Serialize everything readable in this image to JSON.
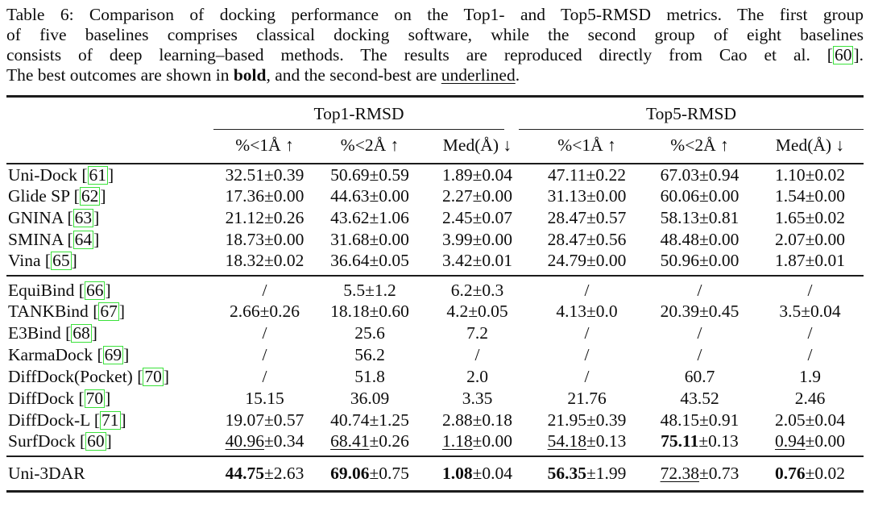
{
  "colors": {
    "cite_box": "#3be23b",
    "rule": "#1c1c1c",
    "text": "#0d0d0d"
  },
  "caption": {
    "line1": "Table 6: Comparison of docking performance on the Top1- and Top5-RMSD metrics. The first group",
    "line2": "of five baselines comprises classical docking software, while the second group of eight baselines",
    "line3_pre": "consists of deep learning–based methods. The results are reproduced directly from Cao et al.",
    "bracket_open": "[",
    "line3_cite": "60",
    "bracket_close": "]",
    "period": ".",
    "line4_pre": "The best outcomes are shown in ",
    "line4_bold": "bold",
    "line4_mid": ", and the second-best are ",
    "line4_underline": "underlined"
  },
  "table": {
    "group_headers": [
      "Top1-RMSD",
      "Top5-RMSD"
    ],
    "sub_headers": [
      "%<1Å ↑",
      "%<2Å ↑",
      "Med(Å) ↓",
      "%<1Å ↑",
      "%<2Å ↑",
      "Med(Å) ↓"
    ],
    "groups": [
      {
        "name": "classical-docking-software",
        "rows": [
          {
            "method": "Uni-Dock",
            "cite": "61",
            "cells": [
              {
                "v": "32.51",
                "e": "±0.39",
                "s": ""
              },
              {
                "v": "50.69",
                "e": "±0.59",
                "s": ""
              },
              {
                "v": "1.89",
                "e": "±0.04",
                "s": ""
              },
              {
                "v": "47.11",
                "e": "±0.22",
                "s": ""
              },
              {
                "v": "67.03",
                "e": "±0.94",
                "s": ""
              },
              {
                "v": "1.10",
                "e": "±0.02",
                "s": ""
              }
            ]
          },
          {
            "method": "Glide SP",
            "cite": "62",
            "cells": [
              {
                "v": "17.36",
                "e": "±0.00",
                "s": ""
              },
              {
                "v": "44.63",
                "e": "±0.00",
                "s": ""
              },
              {
                "v": "2.27",
                "e": "±0.00",
                "s": ""
              },
              {
                "v": "31.13",
                "e": "±0.00",
                "s": ""
              },
              {
                "v": "60.06",
                "e": "±0.00",
                "s": ""
              },
              {
                "v": "1.54",
                "e": "±0.00",
                "s": ""
              }
            ]
          },
          {
            "method": "GNINA",
            "cite": "63",
            "cells": [
              {
                "v": "21.12",
                "e": "±0.26",
                "s": ""
              },
              {
                "v": "43.62",
                "e": "±1.06",
                "s": ""
              },
              {
                "v": "2.45",
                "e": "±0.07",
                "s": ""
              },
              {
                "v": "28.47",
                "e": "±0.57",
                "s": ""
              },
              {
                "v": "58.13",
                "e": "±0.81",
                "s": ""
              },
              {
                "v": "1.65",
                "e": "±0.02",
                "s": ""
              }
            ]
          },
          {
            "method": "SMINA",
            "cite": "64",
            "cells": [
              {
                "v": "18.73",
                "e": "±0.00",
                "s": ""
              },
              {
                "v": "31.68",
                "e": "±0.00",
                "s": ""
              },
              {
                "v": "3.99",
                "e": "±0.00",
                "s": ""
              },
              {
                "v": "28.47",
                "e": "±0.56",
                "s": ""
              },
              {
                "v": "48.48",
                "e": "±0.00",
                "s": ""
              },
              {
                "v": "2.07",
                "e": "±0.00",
                "s": ""
              }
            ]
          },
          {
            "method": "Vina",
            "cite": "65",
            "cells": [
              {
                "v": "18.32",
                "e": "±0.02",
                "s": ""
              },
              {
                "v": "36.64",
                "e": "±0.05",
                "s": ""
              },
              {
                "v": "3.42",
                "e": "±0.01",
                "s": ""
              },
              {
                "v": "24.79",
                "e": "±0.00",
                "s": ""
              },
              {
                "v": "50.96",
                "e": "±0.00",
                "s": ""
              },
              {
                "v": "1.87",
                "e": "±0.01",
                "s": ""
              }
            ]
          }
        ]
      },
      {
        "name": "deep-learning-methods",
        "rows": [
          {
            "method": "EquiBind",
            "cite": "66",
            "cells": [
              {
                "v": "/",
                "e": "",
                "s": ""
              },
              {
                "v": "5.5",
                "e": "±1.2",
                "s": ""
              },
              {
                "v": "6.2",
                "e": "±0.3",
                "s": ""
              },
              {
                "v": "/",
                "e": "",
                "s": ""
              },
              {
                "v": "/",
                "e": "",
                "s": ""
              },
              {
                "v": "/",
                "e": "",
                "s": ""
              }
            ]
          },
          {
            "method": "TANKBind",
            "cite": "67",
            "cells": [
              {
                "v": "2.66",
                "e": "±0.26",
                "s": ""
              },
              {
                "v": "18.18",
                "e": "±0.60",
                "s": ""
              },
              {
                "v": "4.2",
                "e": "±0.05",
                "s": ""
              },
              {
                "v": "4.13",
                "e": "±0.0",
                "s": ""
              },
              {
                "v": "20.39",
                "e": "±0.45",
                "s": ""
              },
              {
                "v": "3.5",
                "e": "±0.04",
                "s": ""
              }
            ]
          },
          {
            "method": "E3Bind",
            "cite": "68",
            "cells": [
              {
                "v": "/",
                "e": "",
                "s": ""
              },
              {
                "v": "25.6",
                "e": "",
                "s": ""
              },
              {
                "v": "7.2",
                "e": "",
                "s": ""
              },
              {
                "v": "/",
                "e": "",
                "s": ""
              },
              {
                "v": "/",
                "e": "",
                "s": ""
              },
              {
                "v": "/",
                "e": "",
                "s": ""
              }
            ]
          },
          {
            "method": "KarmaDock",
            "cite": "69",
            "cells": [
              {
                "v": "/",
                "e": "",
                "s": ""
              },
              {
                "v": "56.2",
                "e": "",
                "s": ""
              },
              {
                "v": "/",
                "e": "",
                "s": ""
              },
              {
                "v": "/",
                "e": "",
                "s": ""
              },
              {
                "v": "/",
                "e": "",
                "s": ""
              },
              {
                "v": "/",
                "e": "",
                "s": ""
              }
            ]
          },
          {
            "method": "DiffDock(Pocket)",
            "cite": "70",
            "cells": [
              {
                "v": "/",
                "e": "",
                "s": ""
              },
              {
                "v": "51.8",
                "e": "",
                "s": ""
              },
              {
                "v": "2.0",
                "e": "",
                "s": ""
              },
              {
                "v": "/",
                "e": "",
                "s": ""
              },
              {
                "v": "60.7",
                "e": "",
                "s": ""
              },
              {
                "v": "1.9",
                "e": "",
                "s": ""
              }
            ]
          },
          {
            "method": "DiffDock",
            "cite": "70",
            "cells": [
              {
                "v": "15.15",
                "e": "",
                "s": ""
              },
              {
                "v": "36.09",
                "e": "",
                "s": ""
              },
              {
                "v": "3.35",
                "e": "",
                "s": ""
              },
              {
                "v": "21.76",
                "e": "",
                "s": ""
              },
              {
                "v": "43.52",
                "e": "",
                "s": ""
              },
              {
                "v": "2.46",
                "e": "",
                "s": ""
              }
            ]
          },
          {
            "method": "DiffDock-L",
            "cite": "71",
            "cells": [
              {
                "v": "19.07",
                "e": "±0.57",
                "s": ""
              },
              {
                "v": "40.74",
                "e": "±1.25",
                "s": ""
              },
              {
                "v": "2.88",
                "e": "±0.18",
                "s": ""
              },
              {
                "v": "21.95",
                "e": "±0.39",
                "s": ""
              },
              {
                "v": "48.15",
                "e": "±0.91",
                "s": ""
              },
              {
                "v": "2.05",
                "e": "±0.04",
                "s": ""
              }
            ]
          },
          {
            "method": "SurfDock",
            "cite": "60",
            "cells": [
              {
                "v": "40.96",
                "e": "±0.34",
                "s": "u"
              },
              {
                "v": "68.41",
                "e": "±0.26",
                "s": "u"
              },
              {
                "v": "1.18",
                "e": "±0.00",
                "s": "u"
              },
              {
                "v": "54.18",
                "e": "±0.13",
                "s": "u"
              },
              {
                "v": "75.11",
                "e": "±0.13",
                "s": "b"
              },
              {
                "v": "0.94",
                "e": "±0.00",
                "s": "u"
              }
            ]
          }
        ]
      },
      {
        "name": "ours",
        "rows": [
          {
            "method": "Uni-3DAR",
            "cite": null,
            "cells": [
              {
                "v": "44.75",
                "e": "±2.63",
                "s": "b"
              },
              {
                "v": "69.06",
                "e": "±0.75",
                "s": "b"
              },
              {
                "v": "1.08",
                "e": "±0.04",
                "s": "b"
              },
              {
                "v": "56.35",
                "e": "±1.99",
                "s": "b"
              },
              {
                "v": "72.38",
                "e": "±0.73",
                "s": "u"
              },
              {
                "v": "0.76",
                "e": "±0.02",
                "s": "b"
              }
            ]
          }
        ]
      }
    ]
  }
}
